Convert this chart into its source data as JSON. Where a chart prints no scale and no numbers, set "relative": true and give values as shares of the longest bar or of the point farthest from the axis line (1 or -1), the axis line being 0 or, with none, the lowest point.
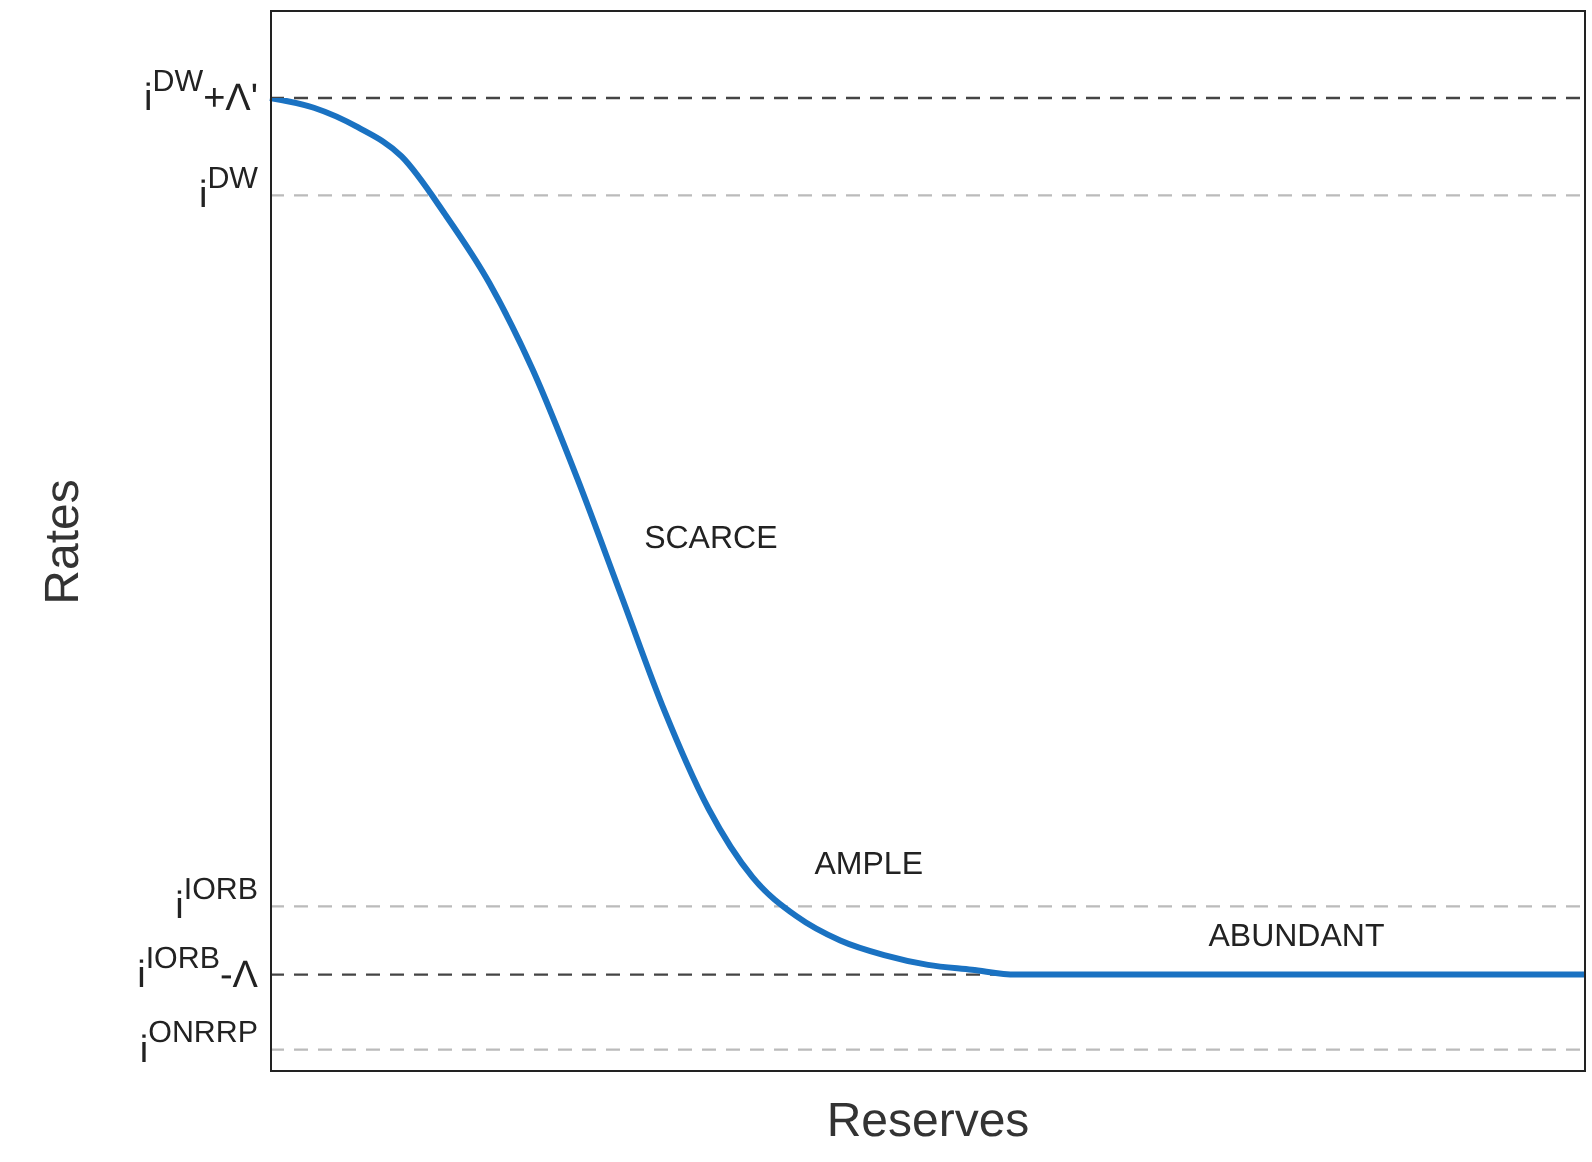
{
  "chart_data": {
    "type": "line",
    "relative": true,
    "xlabel": "Reserves",
    "ylabel": "Rates",
    "categories": [
      null,
      null,
      null,
      null,
      null,
      null,
      null,
      null,
      null,
      null,
      null,
      null,
      null,
      null,
      null,
      null,
      null,
      null,
      null,
      null,
      null,
      null,
      null,
      null,
      null,
      null,
      null,
      null,
      null,
      null,
      null
    ],
    "series": [
      {
        "color": "#1a72c2",
        "values": [
          1,
          0.99,
          0.97,
          0.94,
          0.88,
          0.81,
          0.72,
          0.61,
          0.49,
          0.37,
          0.27,
          0.2,
          0.16,
          0.135,
          0.12,
          0.11,
          0.105,
          0.1,
          0.1,
          0.1,
          0.1,
          0.1,
          0.1,
          0.1,
          0.1,
          0.1,
          0.1,
          0.1,
          0.1,
          0.1,
          0.1
        ]
      }
    ],
    "ref_lines": [
      {
        "axis": "y",
        "value": 1,
        "label": "i$^{DW}$+Λ'",
        "color": "#444444",
        "line_style": "dashed"
      },
      {
        "axis": "y",
        "value": 0.9,
        "label": "i$^{DW}$",
        "color": "#bbbbbb",
        "line_style": "dashed"
      },
      {
        "axis": "y",
        "value": 0.17,
        "label": "i$^{IORB}$",
        "color": "#bbbbbb",
        "line_style": "dashed"
      },
      {
        "axis": "y",
        "value": 0.1,
        "label": "i$^{IORB}$-Λ",
        "color": "#444444",
        "line_style": "dashed"
      },
      {
        "axis": "y",
        "value": 0.023,
        "label": "i$^{ONRRP}$",
        "color": "#bbbbbb",
        "line_style": "dashed"
      }
    ],
    "annotations": [
      "SCARCE",
      "AMPLE",
      "ABUNDANT"
    ]
  }
}
